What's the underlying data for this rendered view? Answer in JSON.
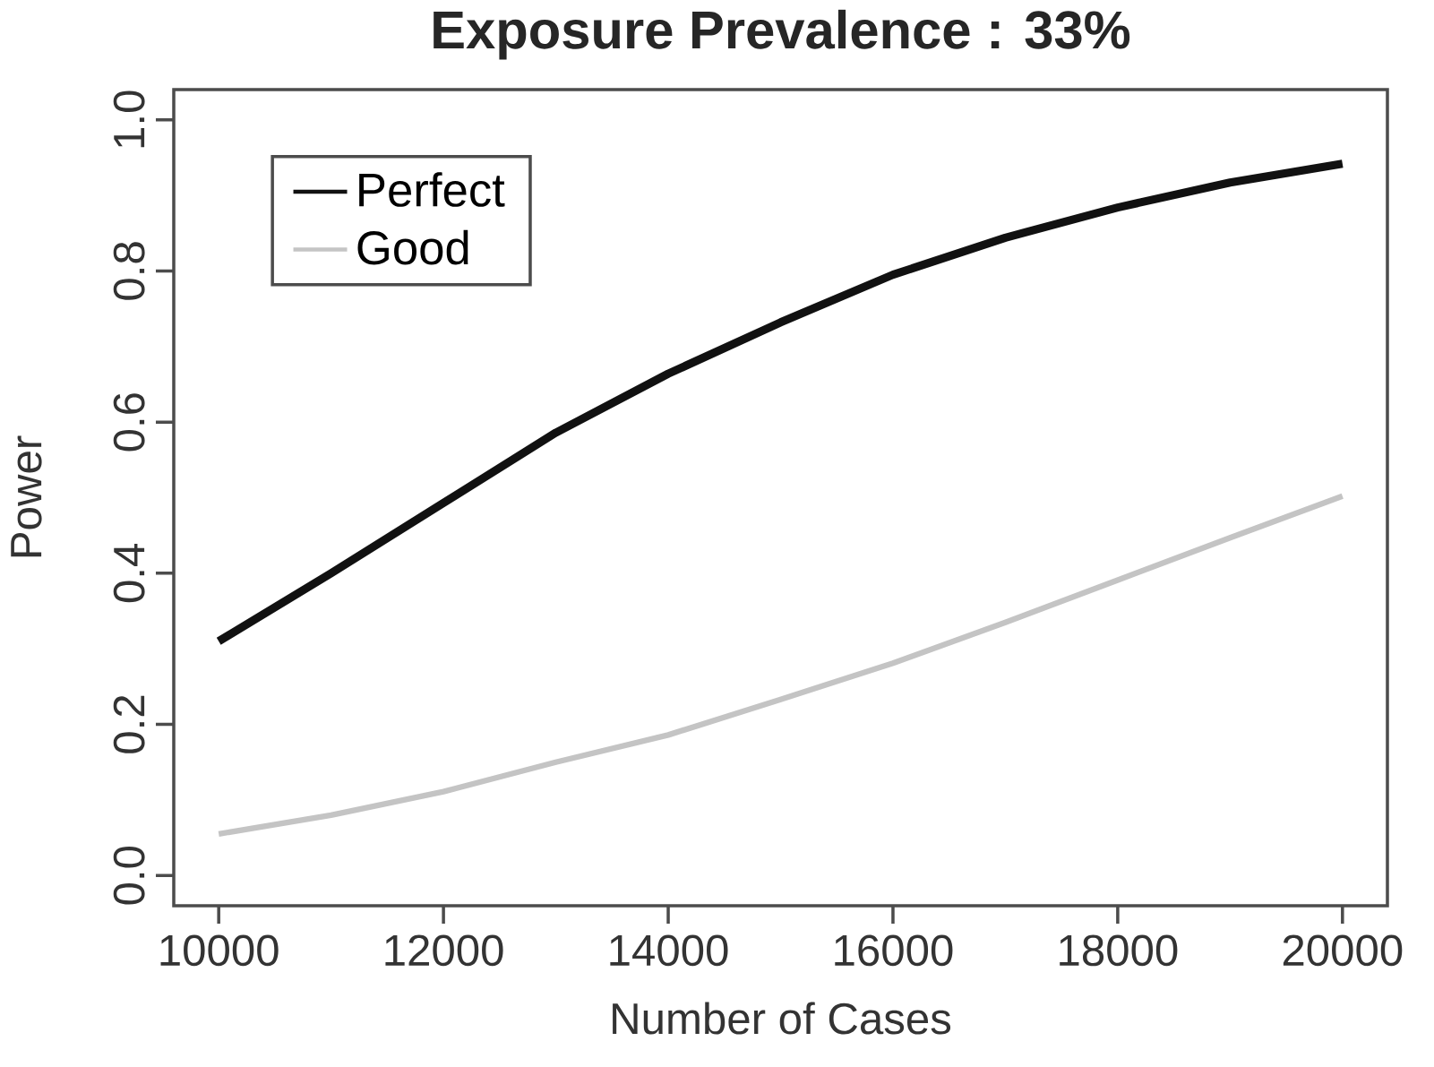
{
  "chart_data": {
    "type": "line",
    "title": "Exposure Prevalence : 33%",
    "xlabel": "Number of Cases",
    "ylabel": "Power",
    "x": [
      10000,
      11000,
      12000,
      13000,
      14000,
      15000,
      16000,
      17000,
      18000,
      19000,
      20000
    ],
    "series": [
      {
        "name": "Perfect",
        "color": "#111111",
        "values": [
          0.31,
          0.4,
          0.493,
          0.586,
          0.664,
          0.732,
          0.795,
          0.844,
          0.884,
          0.917,
          0.942
        ]
      },
      {
        "name": "Good",
        "color": "#c4c4c4",
        "values": [
          0.055,
          0.08,
          0.111,
          0.15,
          0.186,
          0.233,
          0.281,
          0.335,
          0.391,
          0.447,
          0.502
        ]
      }
    ],
    "xlim": [
      9600,
      20400
    ],
    "ylim": [
      -0.04,
      1.04
    ],
    "xticks": [
      10000,
      12000,
      14000,
      16000,
      18000,
      20000
    ],
    "yticks": [
      {
        "value": 0,
        "label": "0.0"
      },
      0.2,
      0.4,
      0.6,
      0.8,
      {
        "value": 1,
        "label": "1.0"
      }
    ],
    "legend": "top left",
    "grid": false,
    "marker": "none",
    "line_style": "solid"
  }
}
